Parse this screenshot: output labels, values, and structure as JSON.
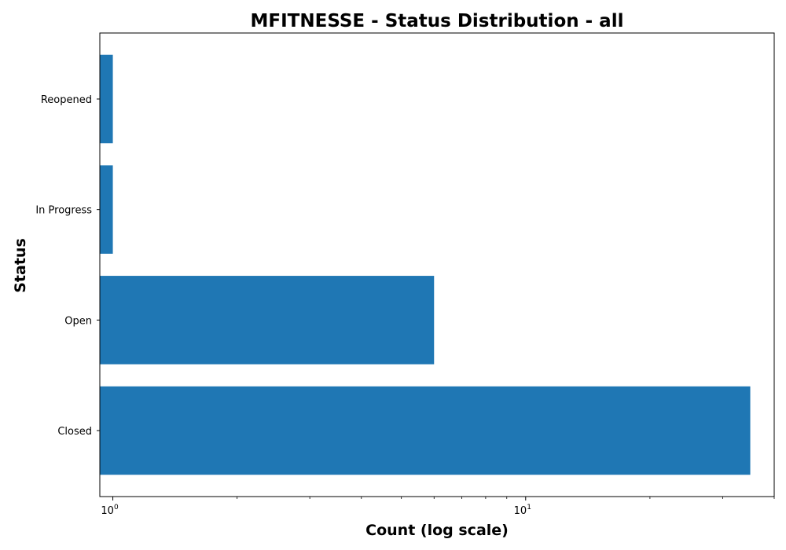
{
  "chart_data": {
    "type": "bar",
    "orientation": "horizontal",
    "title": "MFITNESSE - Status Distribution - all",
    "xlabel": "Count (log scale)",
    "ylabel": "Status",
    "x_scale": "log",
    "xlim": [
      0.93,
      40
    ],
    "categories": [
      "Closed",
      "Open",
      "In Progress",
      "Reopened"
    ],
    "values": [
      35,
      6,
      1,
      1
    ],
    "x_ticks": [
      {
        "value": 1,
        "base": "10",
        "exponent": "0"
      },
      {
        "value": 10,
        "base": "10",
        "exponent": "1"
      }
    ],
    "bar_color": "#1f77b4",
    "grid": false
  }
}
